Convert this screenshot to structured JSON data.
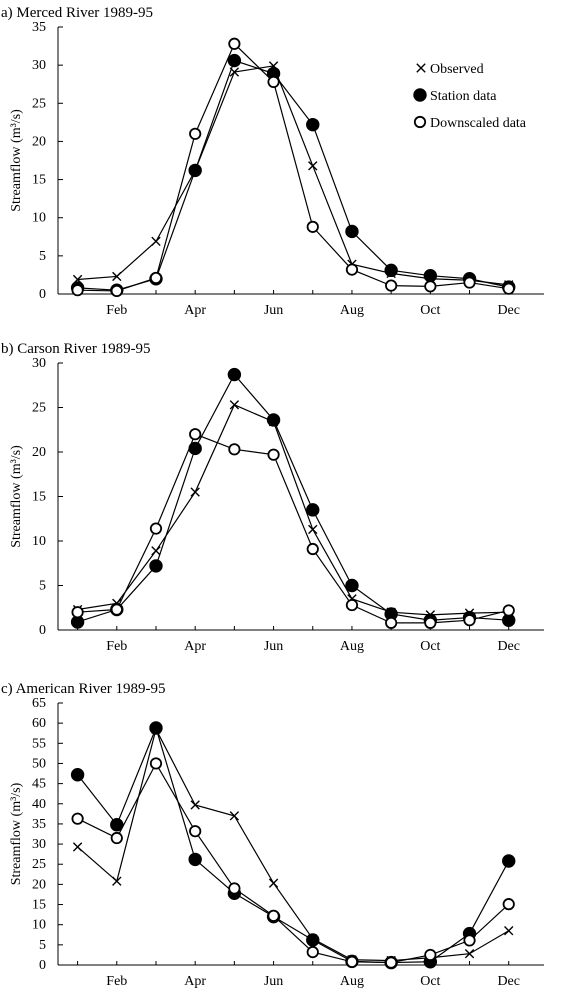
{
  "chart_data": [
    {
      "type": "line",
      "title": "a) Merced River 1989-95",
      "ylabel": "Streamflow (m³/s)",
      "xlabel": "",
      "x": [
        1,
        2,
        3,
        4,
        5,
        6,
        7,
        8,
        9,
        10,
        11,
        12
      ],
      "ylim": [
        0,
        35
      ],
      "yticks": [
        0,
        5,
        10,
        15,
        20,
        25,
        30,
        35
      ],
      "xticks": [
        {
          "x": 2,
          "label": "Feb"
        },
        {
          "x": 4,
          "label": "Apr"
        },
        {
          "x": 6,
          "label": "Jun"
        },
        {
          "x": 8,
          "label": "Aug"
        },
        {
          "x": 10,
          "label": "Oct"
        },
        {
          "x": 12,
          "label": "Dec"
        }
      ],
      "legend_position": "top-right",
      "series": [
        {
          "name": "Observed",
          "marker": "x",
          "values": [
            1.9,
            2.3,
            6.9,
            16.2,
            29.1,
            29.9,
            16.8,
            3.9,
            2.7,
            2.0,
            1.8,
            1.2
          ]
        },
        {
          "name": "Station data",
          "marker": "filled-circle",
          "values": [
            0.8,
            0.5,
            2.0,
            16.2,
            30.6,
            28.9,
            22.2,
            8.2,
            3.1,
            2.4,
            2.0,
            0.9
          ]
        },
        {
          "name": "Downscaled data",
          "marker": "open-circle",
          "values": [
            0.5,
            0.4,
            2.1,
            21.0,
            32.8,
            27.8,
            8.8,
            3.2,
            1.1,
            1.0,
            1.5,
            0.7
          ]
        }
      ]
    },
    {
      "type": "line",
      "title": "b) Carson River 1989-95",
      "ylabel": "Streamflow (m³/s)",
      "xlabel": "",
      "x": [
        1,
        2,
        3,
        4,
        5,
        6,
        7,
        8,
        9,
        10,
        11,
        12
      ],
      "ylim": [
        0,
        30
      ],
      "yticks": [
        0,
        5,
        10,
        15,
        20,
        25,
        30
      ],
      "xticks": [
        {
          "x": 2,
          "label": "Feb"
        },
        {
          "x": 4,
          "label": "Apr"
        },
        {
          "x": 6,
          "label": "Jun"
        },
        {
          "x": 8,
          "label": "Aug"
        },
        {
          "x": 10,
          "label": "Oct"
        },
        {
          "x": 12,
          "label": "Dec"
        }
      ],
      "series": [
        {
          "name": "Observed",
          "marker": "x",
          "values": [
            2.3,
            3.0,
            8.9,
            15.5,
            25.3,
            23.4,
            11.3,
            3.5,
            2.0,
            1.7,
            1.9,
            2.0
          ]
        },
        {
          "name": "Station data",
          "marker": "filled-circle",
          "values": [
            0.9,
            2.3,
            7.2,
            20.4,
            28.7,
            23.6,
            13.5,
            5.0,
            1.8,
            1.1,
            1.4,
            1.1
          ]
        },
        {
          "name": "Downscaled data",
          "marker": "open-circle",
          "values": [
            2.0,
            2.3,
            11.4,
            22.0,
            20.3,
            19.7,
            9.1,
            2.8,
            0.8,
            0.8,
            1.1,
            2.2
          ]
        }
      ]
    },
    {
      "type": "line",
      "title": "c) American River 1989-95",
      "ylabel": "Streamflow (m³/s)",
      "xlabel": "",
      "x": [
        1,
        2,
        3,
        4,
        5,
        6,
        7,
        8,
        9,
        10,
        11,
        12
      ],
      "ylim": [
        0,
        65
      ],
      "yticks": [
        0,
        5,
        10,
        15,
        20,
        25,
        30,
        35,
        40,
        45,
        50,
        55,
        60,
        65
      ],
      "xticks": [
        {
          "x": 2,
          "label": "Feb"
        },
        {
          "x": 4,
          "label": "Apr"
        },
        {
          "x": 6,
          "label": "Jun"
        },
        {
          "x": 8,
          "label": "Aug"
        },
        {
          "x": 10,
          "label": "Oct"
        },
        {
          "x": 12,
          "label": "Dec"
        }
      ],
      "series": [
        {
          "name": "Observed",
          "marker": "x",
          "values": [
            29.3,
            20.8,
            58.5,
            39.7,
            37.0,
            20.3,
            6.5,
            1.3,
            1.1,
            1.8,
            2.8,
            8.5
          ]
        },
        {
          "name": "Station data",
          "marker": "filled-circle",
          "values": [
            47.2,
            34.8,
            58.8,
            26.2,
            17.8,
            12.0,
            6.2,
            0.9,
            0.6,
            0.8,
            7.8,
            25.8
          ]
        },
        {
          "name": "Downscaled data",
          "marker": "open-circle",
          "values": [
            36.3,
            31.5,
            50.0,
            33.2,
            19.0,
            12.2,
            3.2,
            0.8,
            0.6,
            2.5,
            6.1,
            15.1
          ]
        }
      ]
    }
  ]
}
